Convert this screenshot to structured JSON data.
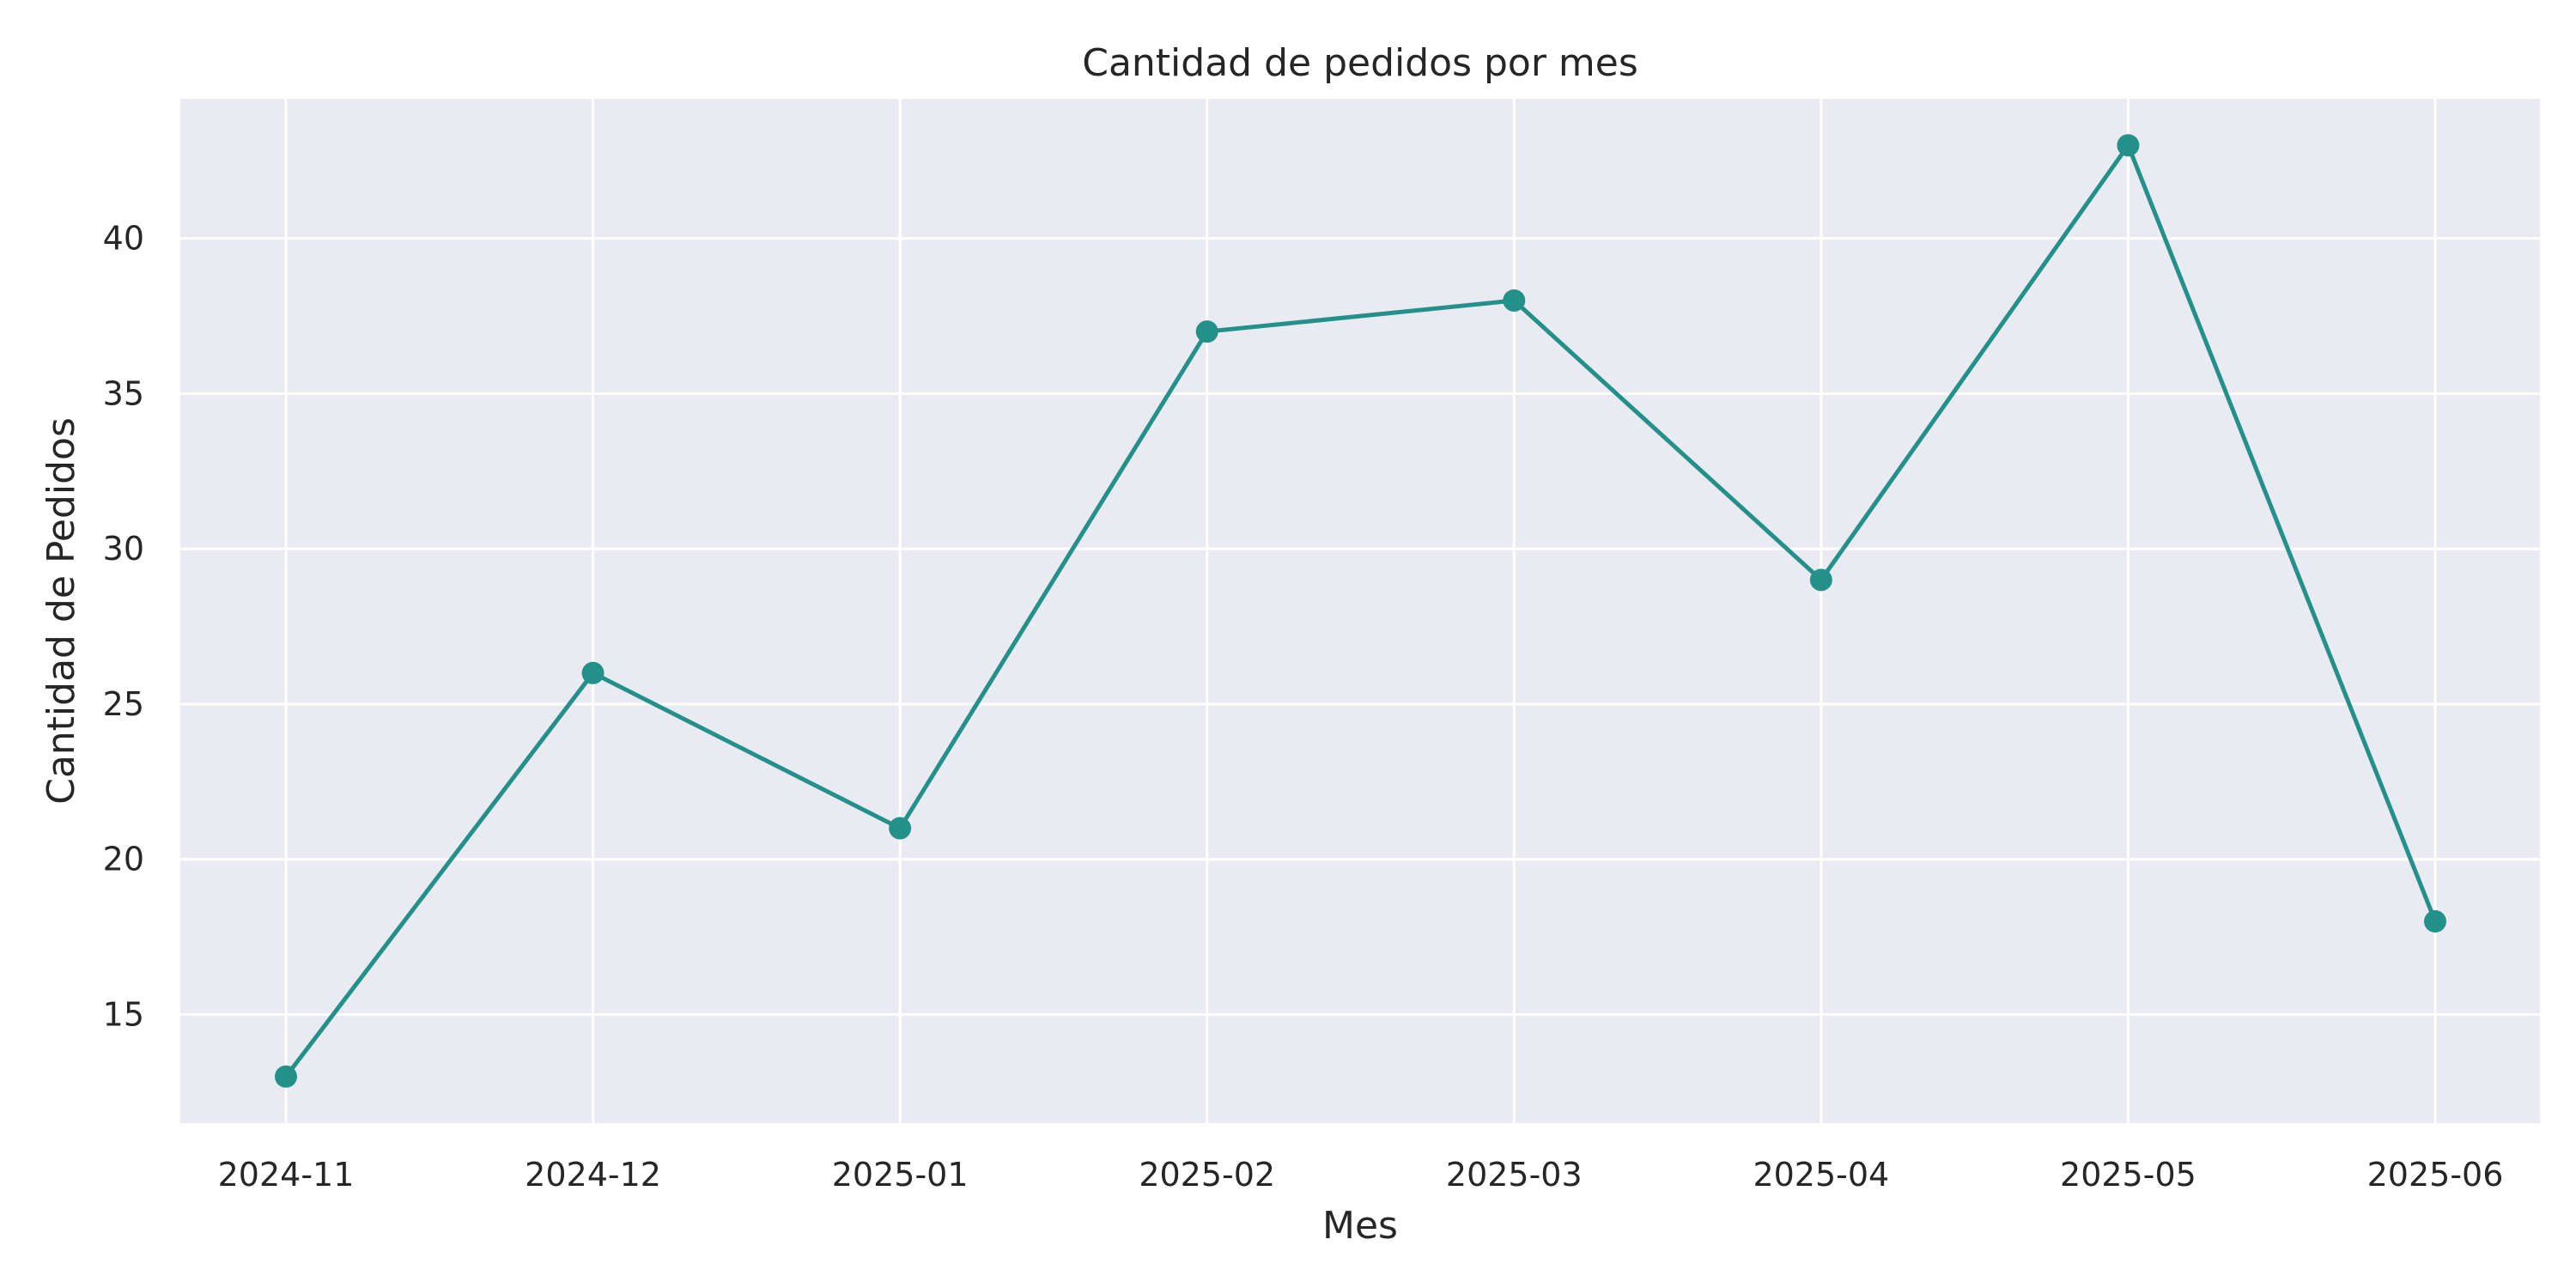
{
  "chart_data": {
    "type": "line",
    "title": "Cantidad de pedidos por mes",
    "xlabel": "Mes",
    "ylabel": "Cantidad de Pedidos",
    "x": [
      "2024-11",
      "2024-12",
      "2025-01",
      "2025-02",
      "2025-03",
      "2025-04",
      "2025-05",
      "2025-06"
    ],
    "x_ticks": [
      "2024-11",
      "2024-12",
      "2025-01",
      "2025-02",
      "2025-03",
      "2025-04",
      "2025-05",
      "2025-06"
    ],
    "values": [
      13,
      26,
      21,
      37,
      38,
      29,
      43,
      18
    ],
    "ylim": [
      11.5,
      44.5
    ],
    "y_ticks": [
      15,
      20,
      25,
      30,
      35,
      40
    ],
    "grid": true,
    "legend": "none",
    "colors": {
      "line": "#23918a",
      "background": "#eaeaf2",
      "grid": "#ffffff",
      "text": "#262626"
    }
  }
}
